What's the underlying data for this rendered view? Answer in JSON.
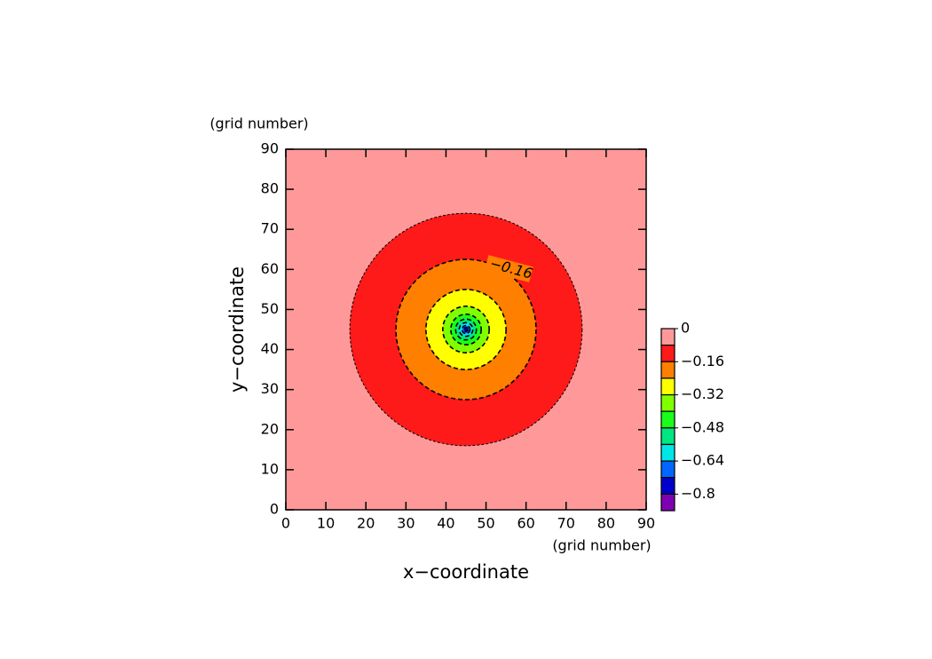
{
  "chart_data": {
    "type": "contour",
    "x_label": "x−coordinate",
    "y_label": "y−coordinate",
    "x_unit": "(grid number)",
    "y_unit": "(grid number)",
    "xlim": [
      0,
      90
    ],
    "ylim": [
      0,
      90
    ],
    "xticks": [
      0,
      10,
      20,
      30,
      40,
      50,
      60,
      70,
      80,
      90
    ],
    "yticks": [
      0,
      10,
      20,
      30,
      40,
      50,
      60,
      70,
      80,
      90
    ],
    "center": [
      45,
      45
    ],
    "contours": [
      {
        "level": -0.08,
        "radius": 29
      },
      {
        "level": -0.16,
        "radius": 17.5
      },
      {
        "level": -0.24,
        "radius": 10
      },
      {
        "level": -0.32,
        "radius": 5.8
      },
      {
        "level": -0.4,
        "radius": 3.8
      },
      {
        "level": -0.48,
        "radius": 2.6
      },
      {
        "level": -0.56,
        "radius": 1.7
      },
      {
        "level": -0.64,
        "radius": 1.0
      },
      {
        "level": -0.72,
        "radius": 0.5
      }
    ],
    "contour_labels": [
      {
        "value": -0.16,
        "label": "−0.16"
      }
    ],
    "colorbar": {
      "levels": [
        0,
        -0.08,
        -0.16,
        -0.24,
        -0.32,
        -0.4,
        -0.48,
        -0.56,
        -0.64,
        -0.72,
        -0.8,
        -0.88
      ],
      "colors": [
        "#ff9999",
        "#ff1a1a",
        "#ff7f00",
        "#ffff00",
        "#80ff00",
        "#1aff1a",
        "#00e680",
        "#00e6e6",
        "#0066ff",
        "#0000cc",
        "#7f00b2"
      ],
      "ticks": [
        0,
        {
          "value": -0.16,
          "label": "−0.16"
        },
        {
          "value": -0.32,
          "label": "−0.32"
        },
        {
          "value": -0.48,
          "label": "−0.48"
        },
        {
          "value": -0.64,
          "label": "−0.64"
        },
        {
          "value": -0.8,
          "label": "−0.8"
        }
      ]
    }
  }
}
